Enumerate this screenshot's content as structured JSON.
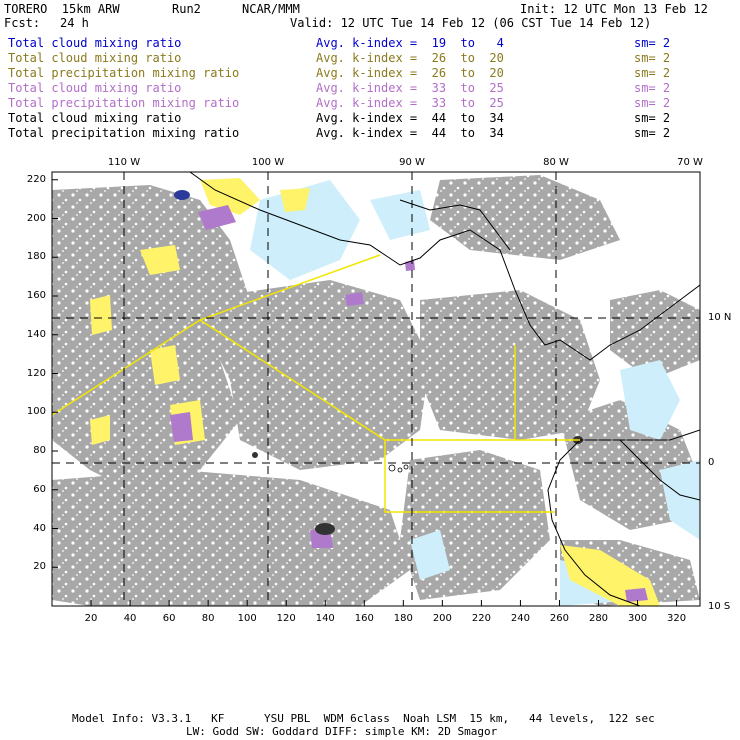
{
  "header": {
    "model": "TORERO  15km ARW",
    "run": "Run2",
    "org": "NCAR/MMM",
    "init": "Init: 12 UTC Mon 13 Feb 12",
    "fcst_label": "Fcst:",
    "fcst_value": "24 h",
    "valid": "Valid: 12 UTC Tue 14 Feb 12 (06 CST Tue 14 Feb 12)"
  },
  "legend": [
    {
      "field": "Total cloud mixing ratio",
      "idx": "Avg. k-index =  19  to   4",
      "sm": "sm= 2",
      "color": "#0000cc"
    },
    {
      "field": "Total cloud mixing ratio",
      "idx": "Avg. k-index =  26  to  20",
      "sm": "sm= 2",
      "color": "#8a7a1c"
    },
    {
      "field": "Total precipitation mixing ratio",
      "idx": "Avg. k-index =  26  to  20",
      "sm": "sm= 2",
      "color": "#8a7a1c"
    },
    {
      "field": "Total cloud mixing ratio",
      "idx": "Avg. k-index =  33  to  25",
      "sm": "sm= 2",
      "color": "#b26ec8"
    },
    {
      "field": "Total precipitation mixing ratio",
      "idx": "Avg. k-index =  33  to  25",
      "sm": "sm= 2",
      "color": "#b26ec8"
    },
    {
      "field": "Total cloud mixing ratio",
      "idx": "Avg. k-index =  44  to  34",
      "sm": "sm= 2",
      "color": "#000000"
    },
    {
      "field": "Total precipitation mixing ratio",
      "idx": "Avg. k-index =  44  to  34",
      "sm": "sm= 2",
      "color": "#000000"
    }
  ],
  "top_lon_labels": [
    "110 W",
    "100 W",
    "90 W",
    "80 W",
    "70 W"
  ],
  "right_lat_labels": [
    "10 N",
    "0",
    "10 S"
  ],
  "x_ticks": [
    "20",
    "40",
    "60",
    "80",
    "100",
    "120",
    "140",
    "160",
    "180",
    "200",
    "220",
    "240",
    "260",
    "280",
    "300",
    "320"
  ],
  "y_ticks": [
    "220",
    "200",
    "180",
    "160",
    "140",
    "120",
    "100",
    "80",
    "60",
    "40",
    "20"
  ],
  "footer": {
    "line1": "Model Info: V3.3.1   KF      YSU PBL  WDM 6class  Noah LSM  15 km,   44 levels,  122 sec",
    "line2": "LW: Godd SW: Goddard DIFF: simple KM: 2D Smagor"
  },
  "colors": {
    "cloud_gray": "#a8a8a8",
    "light_blue": "#cdeefa",
    "yellow": "#fff36a",
    "purple": "#b07acc",
    "dark": "#333333",
    "box_yellow": "#f2e600"
  }
}
